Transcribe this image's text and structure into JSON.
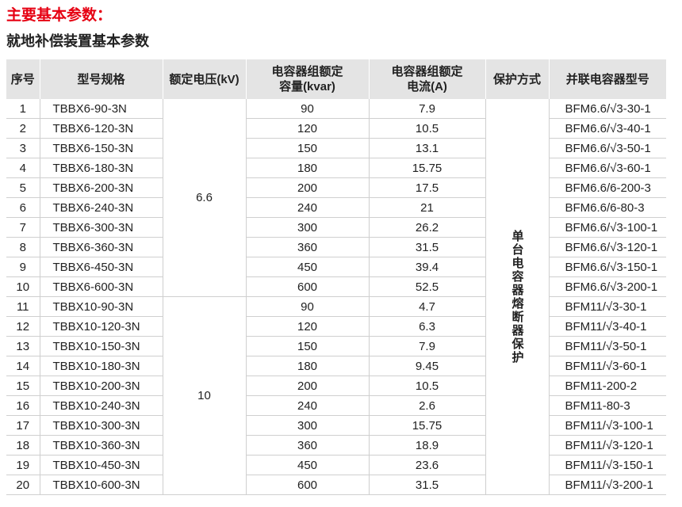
{
  "header": {
    "title": "主要基本参数：",
    "subtitle": "就地补偿装置基本参数"
  },
  "table": {
    "columns": [
      "序号",
      "型号规格",
      "额定电压(kV)",
      "电容器组额定\n容量(kvar)",
      "电容器组额定\n电流(A)",
      "保护方式",
      "并联电容器型号"
    ],
    "voltage_groups": [
      "6.6",
      "10"
    ],
    "protection": "单台电容器熔断器保护",
    "rows": [
      [
        "1",
        "TBBX6-90-3N",
        "90",
        "7.9",
        "BFM6.6/√3-30-1"
      ],
      [
        "2",
        "TBBX6-120-3N",
        "120",
        "10.5",
        "BFM6.6/√3-40-1"
      ],
      [
        "3",
        "TBBX6-150-3N",
        "150",
        "13.1",
        "BFM6.6/√3-50-1"
      ],
      [
        "4",
        "TBBX6-180-3N",
        "180",
        "15.75",
        "BFM6.6/√3-60-1"
      ],
      [
        "5",
        "TBBX6-200-3N",
        "200",
        "17.5",
        "BFM6.6/6-200-3"
      ],
      [
        "6",
        "TBBX6-240-3N",
        "240",
        "21",
        "BFM6.6/6-80-3"
      ],
      [
        "7",
        "TBBX6-300-3N",
        "300",
        "26.2",
        "BFM6.6/√3-100-1"
      ],
      [
        "8",
        "TBBX6-360-3N",
        "360",
        "31.5",
        "BFM6.6/√3-120-1"
      ],
      [
        "9",
        "TBBX6-450-3N",
        "450",
        "39.4",
        "BFM6.6/√3-150-1"
      ],
      [
        "10",
        "TBBX6-600-3N",
        "600",
        "52.5",
        "BFM6.6/√3-200-1"
      ],
      [
        "11",
        "TBBX10-90-3N",
        "90",
        "4.7",
        "BFM11/√3-30-1"
      ],
      [
        "12",
        "TBBX10-120-3N",
        "120",
        "6.3",
        "BFM11/√3-40-1"
      ],
      [
        "13",
        "TBBX10-150-3N",
        "150",
        "7.9",
        "BFM11/√3-50-1"
      ],
      [
        "14",
        "TBBX10-180-3N",
        "180",
        "9.45",
        "BFM11/√3-60-1"
      ],
      [
        "15",
        "TBBX10-200-3N",
        "200",
        "10.5",
        "BFM11-200-2"
      ],
      [
        "16",
        "TBBX10-240-3N",
        "240",
        "2.6",
        "BFM11-80-3"
      ],
      [
        "17",
        "TBBX10-300-3N",
        "300",
        "15.75",
        "BFM11/√3-100-1"
      ],
      [
        "18",
        "TBBX10-360-3N",
        "360",
        "18.9",
        "BFM11/√3-120-1"
      ],
      [
        "19",
        "TBBX10-450-3N",
        "450",
        "23.6",
        "BFM11/√3-150-1"
      ],
      [
        "20",
        "TBBX10-600-3N",
        "600",
        "31.5",
        "BFM11/√3-200-1"
      ]
    ]
  }
}
